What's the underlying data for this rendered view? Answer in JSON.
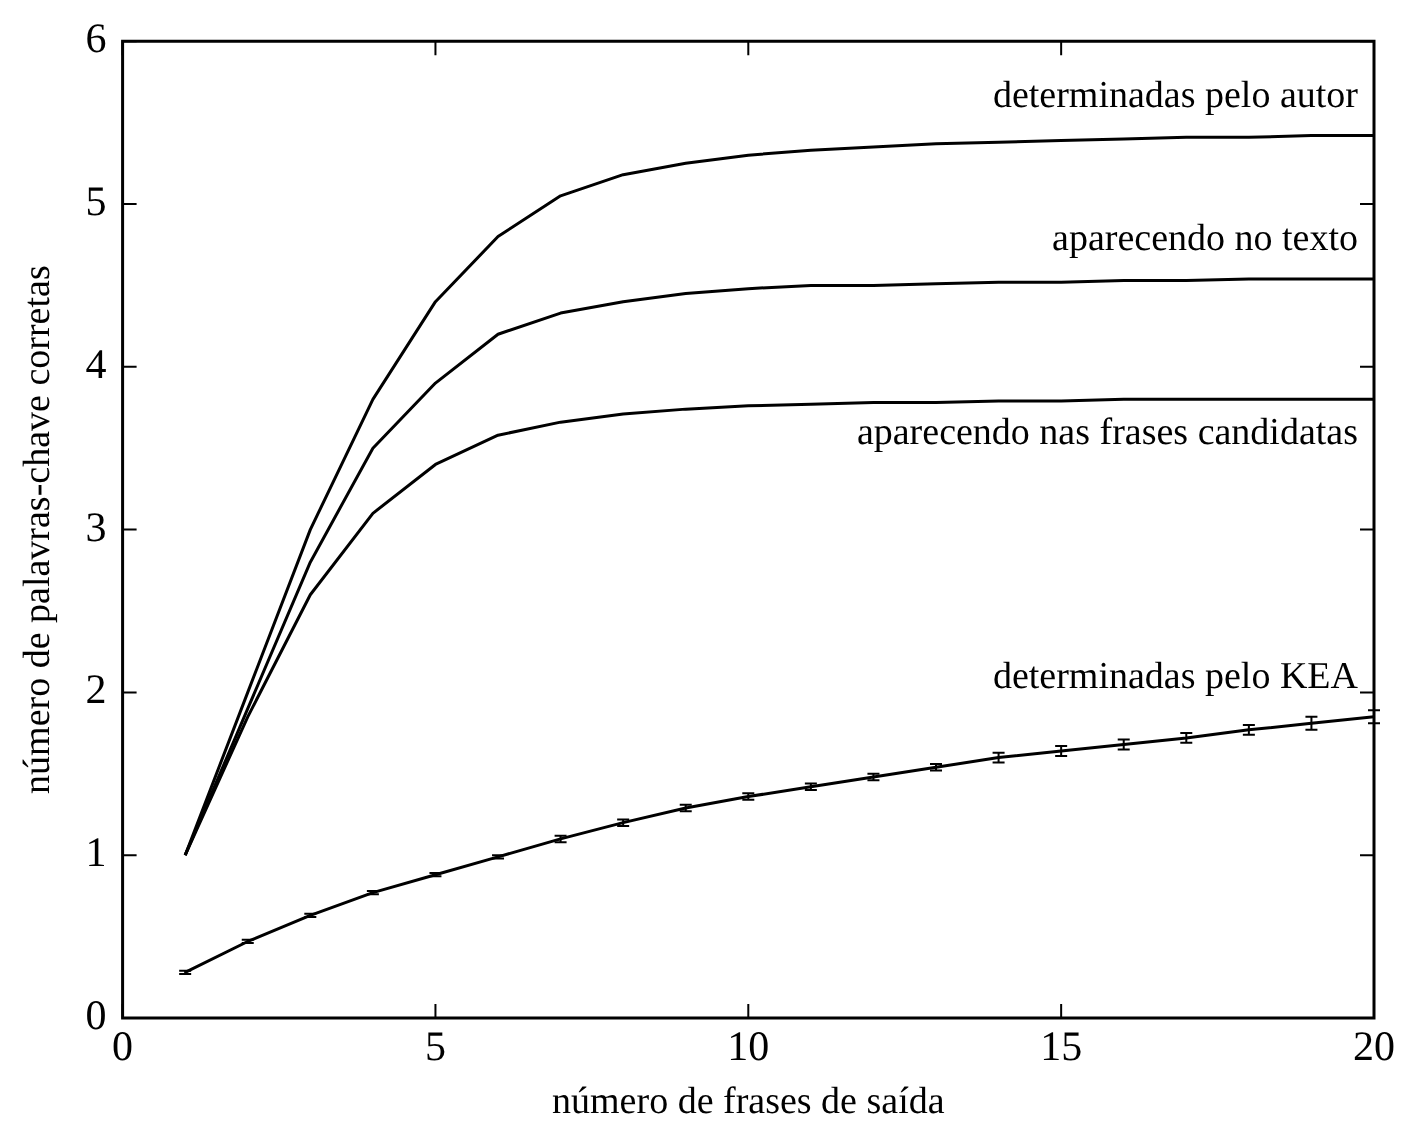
{
  "chart_data": {
    "type": "line",
    "xlabel": "número de frases de saída",
    "ylabel": "número de palavras-chave corretas",
    "x": [
      1,
      2,
      3,
      4,
      5,
      6,
      7,
      8,
      9,
      10,
      11,
      12,
      13,
      14,
      15,
      16,
      17,
      18,
      19,
      20
    ],
    "xlim": [
      0,
      20
    ],
    "xticks": [
      0,
      5,
      10,
      15,
      20
    ],
    "ylim": [
      0,
      6
    ],
    "yticks": [
      0,
      1,
      2,
      3,
      4,
      5,
      6
    ],
    "grid": false,
    "legend": "top right",
    "marker": "none",
    "line_style": "solid",
    "series": [
      {
        "name": "determinadas pelo autor",
        "color": "#000000",
        "values": [
          1,
          2.0,
          3.0,
          3.8,
          4.4,
          4.8,
          5.05,
          5.18,
          5.25,
          5.3,
          5.33,
          5.35,
          5.37,
          5.38,
          5.39,
          5.4,
          5.41,
          5.41,
          5.42,
          5.42
        ]
      },
      {
        "name": "aparecendo no texto",
        "color": "#000000",
        "values": [
          1,
          1.9,
          2.8,
          3.5,
          3.9,
          4.2,
          4.33,
          4.4,
          4.45,
          4.48,
          4.5,
          4.5,
          4.51,
          4.52,
          4.52,
          4.53,
          4.53,
          4.54,
          4.54,
          4.54
        ]
      },
      {
        "name": "aparecendo nas frases candidatas",
        "color": "#000000",
        "values": [
          1,
          1.85,
          2.6,
          3.1,
          3.4,
          3.58,
          3.66,
          3.71,
          3.74,
          3.76,
          3.77,
          3.78,
          3.78,
          3.79,
          3.79,
          3.8,
          3.8,
          3.8,
          3.8,
          3.8
        ]
      },
      {
        "name": "determinadas pelo KEA",
        "color": "#000000",
        "values": [
          0.28,
          0.47,
          0.63,
          0.77,
          0.88,
          0.99,
          1.1,
          1.2,
          1.29,
          1.36,
          1.42,
          1.48,
          1.54,
          1.6,
          1.64,
          1.68,
          1.72,
          1.77,
          1.81,
          1.85
        ],
        "errors": [
          0.01,
          0.01,
          0.01,
          0.01,
          0.01,
          0.01,
          0.02,
          0.02,
          0.02,
          0.02,
          0.02,
          0.02,
          0.02,
          0.03,
          0.03,
          0.03,
          0.03,
          0.03,
          0.04,
          0.04
        ]
      }
    ]
  }
}
